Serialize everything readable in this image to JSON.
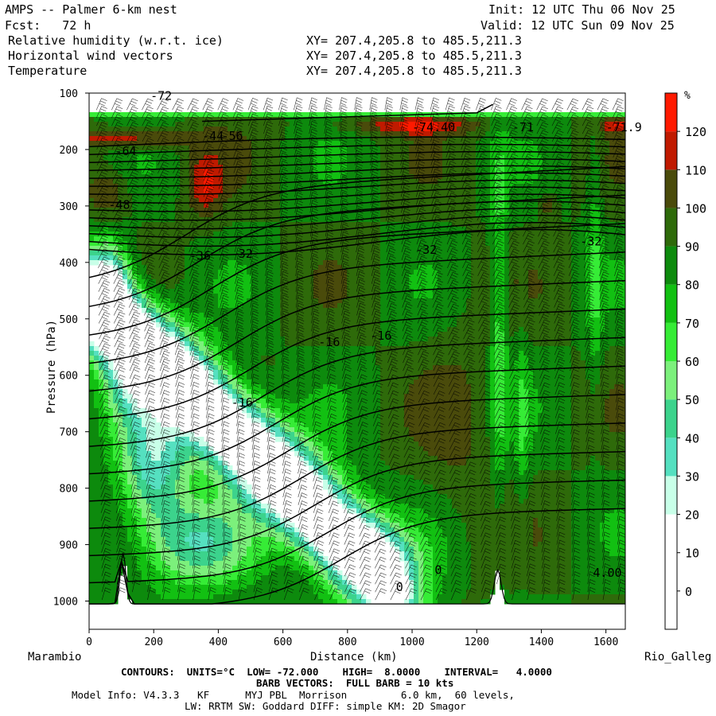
{
  "header": {
    "title_line": "AMPS -- Palmer 6-km nest",
    "fcst_line": "Fcst:   72 h",
    "init_line": "Init: 12 UTC Thu 06 Nov 25",
    "valid_line": "Valid: 12 UTC Sun 09 Nov 25",
    "fields": [
      {
        "label": "Relative humidity (w.r.t. ice)",
        "xy": "XY= 207.4,205.8 to 485.5,211.3"
      },
      {
        "label": "Horizontal wind vectors",
        "xy": "XY= 207.4,205.8 to 485.5,211.3"
      },
      {
        "label": "Temperature",
        "xy": "XY= 207.4,205.8 to 485.5,211.3"
      }
    ]
  },
  "chart_data": {
    "type": "heatmap",
    "xlabel": "Distance (km)",
    "ylabel": "Pressure (hPa)",
    "xlim": [
      0,
      1660
    ],
    "ylim": [
      1050,
      100
    ],
    "x_ticks": [
      0,
      200,
      400,
      600,
      800,
      1000,
      1200,
      1400,
      1600
    ],
    "y_ticks": [
      100,
      200,
      300,
      400,
      500,
      600,
      700,
      800,
      900,
      1000
    ],
    "left_endpoint": "Marambio",
    "right_endpoint": "Rio_Galleg",
    "colorbar": {
      "unit": "%",
      "levels": [
        0,
        10,
        20,
        30,
        40,
        50,
        60,
        70,
        80,
        90,
        100,
        110,
        120,
        130
      ],
      "colors": [
        "#ffffff",
        "#ffffff",
        "#ffffff",
        "#c8ffe8",
        "#55e0c0",
        "#3cd38c",
        "#7cf07c",
        "#36ec36",
        "#12c012",
        "#0d8a0d",
        "#2e6a0a",
        "#4a4b0b",
        "#c01a00",
        "#ff1a00"
      ]
    },
    "temperature_contours": {
      "units": "°C",
      "low": -72,
      "high": 8,
      "interval": 4,
      "labels": [
        {
          "text": "-72",
          "x": 190,
          "p": 112
        },
        {
          "text": "-44",
          "x": 350,
          "p": 183
        },
        {
          "text": "-56",
          "x": 410,
          "p": 183
        },
        {
          "text": "-74.40",
          "x": 1000,
          "p": 168
        },
        {
          "text": "-71",
          "x": 1310,
          "p": 168
        },
        {
          "text": "-71.9",
          "x": 1600,
          "p": 168
        },
        {
          "text": "-64",
          "x": 80,
          "p": 210
        },
        {
          "text": "-48",
          "x": 60,
          "p": 305
        },
        {
          "text": "-36",
          "x": 310,
          "p": 395
        },
        {
          "text": "-32",
          "x": 440,
          "p": 392
        },
        {
          "text": "-32",
          "x": 1010,
          "p": 385
        },
        {
          "text": "-32",
          "x": 1520,
          "p": 370
        },
        {
          "text": "-16",
          "x": 710,
          "p": 548
        },
        {
          "text": "-16",
          "x": 870,
          "p": 537
        },
        {
          "text": "-16",
          "x": 440,
          "p": 655
        },
        {
          "text": "0",
          "x": 1070,
          "p": 952
        },
        {
          "text": "0",
          "x": 950,
          "p": 982
        },
        {
          "text": "4.00",
          "x": 1560,
          "p": 957
        }
      ]
    },
    "barb_vectors": "FULL BARB = 10 kts"
  },
  "footer": {
    "contour_label": "CONTOURS:",
    "units_label": "UNITS=°C",
    "low_label": "LOW= -72.000",
    "high_label": "HIGH=  8.0000",
    "interval_label": "INTERVAL=   4.0000",
    "barb_label": "BARB VECTORS:  FULL BARB = 10 kts",
    "model_info": "Model Info: V4.3.3   KF      MYJ PBL  Morrison         6.0 km,  60 levels,",
    "physics_info": "LW: RRTM SW: Goddard DIFF: simple KM: 2D Smagor"
  }
}
